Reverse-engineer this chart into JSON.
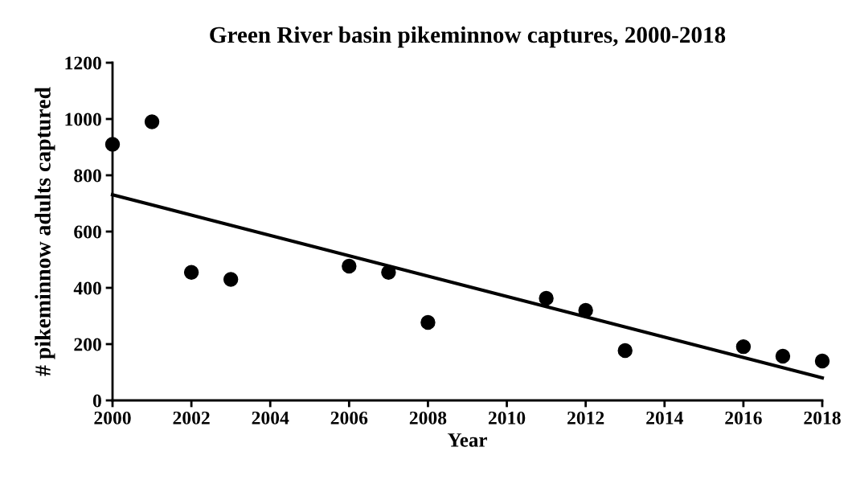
{
  "chart_data": {
    "type": "scatter",
    "title": "Green River basin pikeminnow captures, 2000-2018",
    "xlabel": "Year",
    "ylabel": "# pikeminnow adults captured",
    "series": [
      {
        "color": "#000000",
        "marker": "circle",
        "x": [
          2000,
          2001,
          2002,
          2003,
          2006,
          2007,
          2008,
          2011,
          2012,
          2013,
          2016,
          2017,
          2018
        ],
        "values": [
          910,
          990,
          455,
          430,
          477,
          455,
          277,
          363,
          320,
          177,
          191,
          157,
          140
        ]
      },
      {
        "type": "line",
        "color": "#000000",
        "marker": "none",
        "line_style": "solid",
        "x": [
          2000,
          2018
        ],
        "values": [
          731,
          80
        ]
      }
    ],
    "xlim": [
      2000,
      2018
    ],
    "xticks": [
      2000,
      2002,
      2004,
      2006,
      2008,
      2010,
      2012,
      2014,
      2016,
      2018
    ],
    "ylim": [
      0,
      1200
    ],
    "yticks": [
      0,
      200,
      400,
      600,
      800,
      1000,
      1200
    ],
    "grid": false,
    "legend": false
  }
}
